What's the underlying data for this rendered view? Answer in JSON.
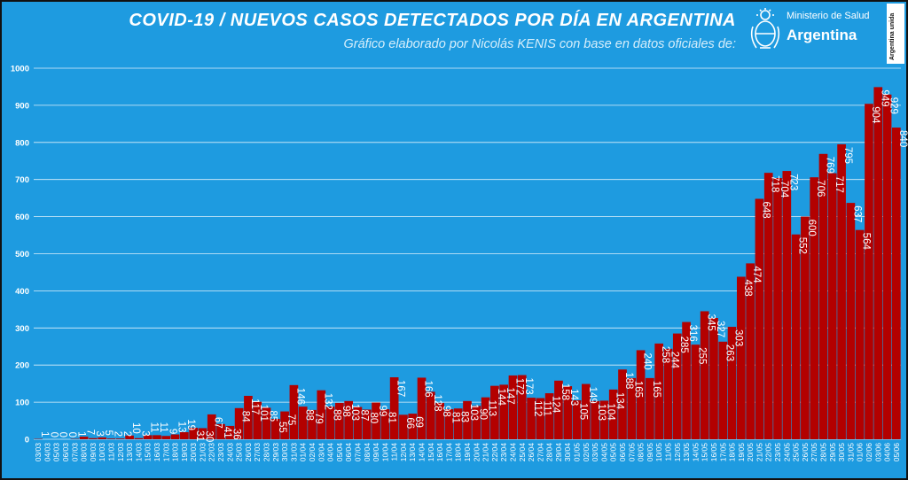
{
  "header": {
    "title": "COVID-19  /  NUEVOS CASOS DETECTADOS POR DÍA EN ARGENTINA",
    "subtitle": "Gráfico elaborado por Nicolás KENIS con base en datos oficiales de:",
    "logo_ministry": "Ministerio de Salud",
    "logo_country": "Argentina",
    "badge": "Argentina unida"
  },
  "colors": {
    "background": "#1e9be0",
    "bar": "#b30000",
    "grid": "#ffffff",
    "text": "#ffffff"
  },
  "chart_data": {
    "type": "bar",
    "title": "COVID-19  /  NUEVOS CASOS DETECTADOS POR DÍA EN ARGENTINA",
    "ylim": [
      0,
      1000
    ],
    "yticks": [
      0,
      100,
      200,
      300,
      400,
      500,
      600,
      700,
      800,
      900,
      1000
    ],
    "grid": true,
    "categories": [
      "03/03",
      "04/03",
      "05/03",
      "06/03",
      "07/03",
      "08/03",
      "09/03",
      "10/03",
      "11/03",
      "12/03",
      "13/03",
      "14/03",
      "15/03",
      "16/03",
      "17/03",
      "18/03",
      "19/03",
      "20/03",
      "21/03",
      "22/03",
      "23/03",
      "24/03",
      "25/03",
      "26/03",
      "27/03",
      "28/03",
      "29/03",
      "30/03",
      "31/03",
      "01/04",
      "02/04",
      "03/04",
      "04/04",
      "05/04",
      "06/04",
      "07/04",
      "08/04",
      "09/04",
      "10/04",
      "11/04",
      "12/04",
      "13/04",
      "14/04",
      "15/04",
      "16/04",
      "17/04",
      "18/04",
      "19/04",
      "20/04",
      "21/04",
      "22/04",
      "23/04",
      "24/04",
      "25/04",
      "26/04",
      "27/04",
      "28/04",
      "29/04",
      "30/04",
      "01/05",
      "02/05",
      "03/05",
      "04/05",
      "05/05",
      "06/05",
      "07/05",
      "08/05",
      "09/05",
      "10/05",
      "11/05",
      "12/05",
      "13/05",
      "14/05",
      "15/05",
      "16/05",
      "17/05",
      "18/05",
      "19/05",
      "20/05",
      "21/05",
      "22/05",
      "23/05",
      "24/05",
      "25/05",
      "26/05",
      "27/05",
      "28/05",
      "29/05",
      "30/05",
      "31/05",
      "01/06",
      "02/06",
      "03/06",
      "04/06",
      "05/06"
    ],
    "values": [
      1,
      0,
      0,
      0,
      1,
      7,
      3,
      5,
      2,
      2,
      10,
      3,
      11,
      11,
      9,
      13,
      19,
      31,
      30,
      67,
      41,
      36,
      84,
      117,
      101,
      85,
      55,
      75,
      146,
      88,
      79,
      132,
      88,
      98,
      103,
      87,
      80,
      99,
      81,
      167,
      66,
      69,
      166,
      128,
      98,
      81,
      83,
      103,
      90,
      113,
      144,
      147,
      172,
      173,
      112,
      111,
      124,
      158,
      143,
      105,
      149,
      103,
      104,
      134,
      188,
      165,
      240,
      165,
      258,
      244,
      285,
      316,
      255,
      345,
      327,
      263,
      303,
      438,
      474,
      648,
      718,
      704,
      723,
      552,
      600,
      706,
      769,
      717,
      795,
      637,
      564,
      904,
      949,
      929,
      840
    ],
    "value_labels": [
      "1",
      "0",
      "0",
      "0",
      "1",
      "7",
      "3",
      "5",
      "2",
      "2",
      "10",
      "3",
      "11",
      "11",
      "9",
      "13",
      "19",
      "31",
      "30",
      "67",
      "41",
      "36",
      "84",
      "117",
      "101",
      "85",
      "55",
      "75",
      "146",
      "88",
      "79",
      "132",
      "88",
      "98",
      "103",
      "87",
      "80",
      "99",
      "81",
      "167",
      "66",
      "69",
      "166",
      "128",
      "98",
      "81",
      "83",
      "103",
      "90",
      "113",
      "144",
      "147",
      "172",
      "173",
      "112",
      "111",
      "124",
      "158",
      "143",
      "105",
      "149",
      "103",
      "104",
      "134",
      "188",
      "165",
      "240",
      "165",
      "258",
      "244",
      "285",
      "316",
      "255",
      "345",
      "327",
      "263",
      "303",
      "438",
      "474",
      "648",
      "718",
      "704",
      "723",
      "552",
      "600",
      "706",
      "769",
      "717",
      "795",
      "637",
      "564",
      "904",
      "949",
      "929",
      "840"
    ]
  }
}
